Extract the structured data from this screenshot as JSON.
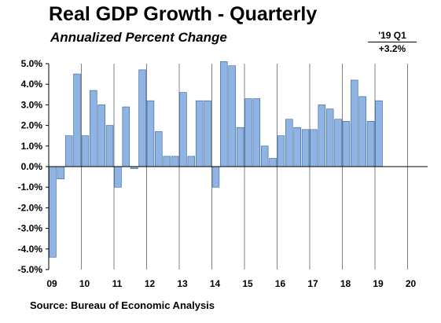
{
  "header": {
    "title": "Real GDP Growth - Quarterly",
    "subtitle": "Annualized  Percent Change",
    "latest_label": "'19 Q1",
    "latest_value": "+3.2%"
  },
  "footer": {
    "source": "Source:  Bureau of Economic Analysis"
  },
  "colors": {
    "bar_fill": "#8fb4e3",
    "bar_stroke": "#2f5f9a",
    "axis": "#000000",
    "grid": "#808080"
  },
  "chart_data": {
    "type": "bar",
    "title": "Real GDP Growth - Quarterly",
    "subtitle": "Annualized  Percent Change",
    "xlabel": "",
    "ylabel": "",
    "ylim": [
      -5,
      5
    ],
    "yticks": [
      "5.0%",
      "4.0%",
      "3.0%",
      "2.0%",
      "1.0%",
      "0.0%",
      "-1.0%",
      "-2.0%",
      "-3.0%",
      "-4.0%",
      "-5.0%"
    ],
    "ytick_values": [
      5,
      4,
      3,
      2,
      1,
      0,
      -1,
      -2,
      -3,
      -4,
      -5
    ],
    "year_labels": [
      "09",
      "10",
      "11",
      "12",
      "13",
      "14",
      "15",
      "16",
      "17",
      "18",
      "19",
      "20"
    ],
    "quarters_per_year": 4,
    "grid": "vertical lines at each year boundary",
    "legend": "none",
    "values": [
      -4.4,
      -0.6,
      1.5,
      4.5,
      1.5,
      3.7,
      3.0,
      2.0,
      -1.0,
      2.9,
      -0.1,
      4.7,
      3.2,
      1.7,
      0.5,
      0.5,
      3.6,
      0.5,
      3.2,
      3.2,
      -1.0,
      5.1,
      4.9,
      1.9,
      3.3,
      3.3,
      1.0,
      0.4,
      1.5,
      2.3,
      1.9,
      1.8,
      1.8,
      3.0,
      2.8,
      2.3,
      2.2,
      4.2,
      3.4,
      2.2,
      3.2
    ]
  }
}
